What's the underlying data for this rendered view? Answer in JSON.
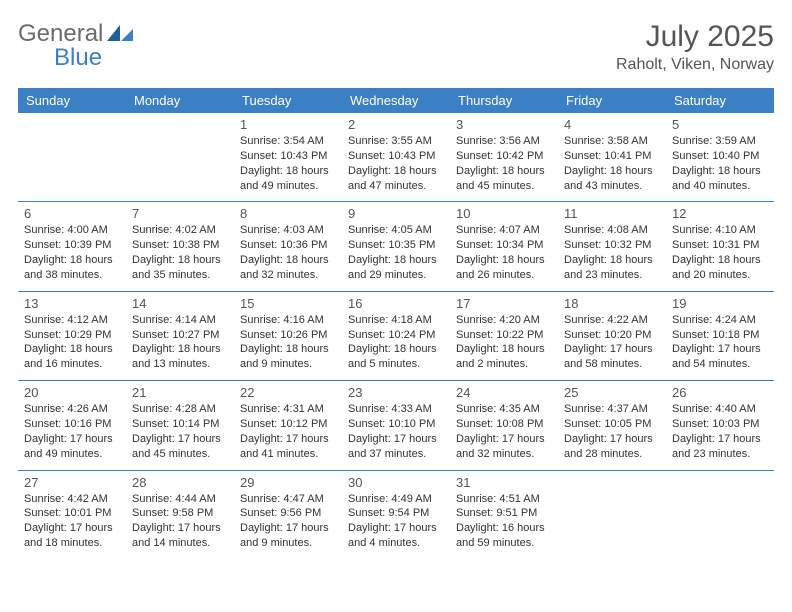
{
  "logo": {
    "text1": "General",
    "text2": "Blue"
  },
  "title": "July 2025",
  "location": "Raholt, Viken, Norway",
  "colors": {
    "header_bg": "#3b7fc4",
    "header_fg": "#ffffff",
    "border": "#3b7fc4",
    "text": "#333333",
    "muted": "#555555"
  },
  "font": {
    "family": "Arial",
    "title_size": 30,
    "location_size": 16,
    "th_size": 13,
    "daynum_size": 13,
    "info_size": 11
  },
  "weekdays": [
    "Sunday",
    "Monday",
    "Tuesday",
    "Wednesday",
    "Thursday",
    "Friday",
    "Saturday"
  ],
  "weeks": [
    [
      null,
      null,
      {
        "n": "1",
        "sr": "3:54 AM",
        "ss": "10:43 PM",
        "dl": "18 hours and 49 minutes."
      },
      {
        "n": "2",
        "sr": "3:55 AM",
        "ss": "10:43 PM",
        "dl": "18 hours and 47 minutes."
      },
      {
        "n": "3",
        "sr": "3:56 AM",
        "ss": "10:42 PM",
        "dl": "18 hours and 45 minutes."
      },
      {
        "n": "4",
        "sr": "3:58 AM",
        "ss": "10:41 PM",
        "dl": "18 hours and 43 minutes."
      },
      {
        "n": "5",
        "sr": "3:59 AM",
        "ss": "10:40 PM",
        "dl": "18 hours and 40 minutes."
      }
    ],
    [
      {
        "n": "6",
        "sr": "4:00 AM",
        "ss": "10:39 PM",
        "dl": "18 hours and 38 minutes."
      },
      {
        "n": "7",
        "sr": "4:02 AM",
        "ss": "10:38 PM",
        "dl": "18 hours and 35 minutes."
      },
      {
        "n": "8",
        "sr": "4:03 AM",
        "ss": "10:36 PM",
        "dl": "18 hours and 32 minutes."
      },
      {
        "n": "9",
        "sr": "4:05 AM",
        "ss": "10:35 PM",
        "dl": "18 hours and 29 minutes."
      },
      {
        "n": "10",
        "sr": "4:07 AM",
        "ss": "10:34 PM",
        "dl": "18 hours and 26 minutes."
      },
      {
        "n": "11",
        "sr": "4:08 AM",
        "ss": "10:32 PM",
        "dl": "18 hours and 23 minutes."
      },
      {
        "n": "12",
        "sr": "4:10 AM",
        "ss": "10:31 PM",
        "dl": "18 hours and 20 minutes."
      }
    ],
    [
      {
        "n": "13",
        "sr": "4:12 AM",
        "ss": "10:29 PM",
        "dl": "18 hours and 16 minutes."
      },
      {
        "n": "14",
        "sr": "4:14 AM",
        "ss": "10:27 PM",
        "dl": "18 hours and 13 minutes."
      },
      {
        "n": "15",
        "sr": "4:16 AM",
        "ss": "10:26 PM",
        "dl": "18 hours and 9 minutes."
      },
      {
        "n": "16",
        "sr": "4:18 AM",
        "ss": "10:24 PM",
        "dl": "18 hours and 5 minutes."
      },
      {
        "n": "17",
        "sr": "4:20 AM",
        "ss": "10:22 PM",
        "dl": "18 hours and 2 minutes."
      },
      {
        "n": "18",
        "sr": "4:22 AM",
        "ss": "10:20 PM",
        "dl": "17 hours and 58 minutes."
      },
      {
        "n": "19",
        "sr": "4:24 AM",
        "ss": "10:18 PM",
        "dl": "17 hours and 54 minutes."
      }
    ],
    [
      {
        "n": "20",
        "sr": "4:26 AM",
        "ss": "10:16 PM",
        "dl": "17 hours and 49 minutes."
      },
      {
        "n": "21",
        "sr": "4:28 AM",
        "ss": "10:14 PM",
        "dl": "17 hours and 45 minutes."
      },
      {
        "n": "22",
        "sr": "4:31 AM",
        "ss": "10:12 PM",
        "dl": "17 hours and 41 minutes."
      },
      {
        "n": "23",
        "sr": "4:33 AM",
        "ss": "10:10 PM",
        "dl": "17 hours and 37 minutes."
      },
      {
        "n": "24",
        "sr": "4:35 AM",
        "ss": "10:08 PM",
        "dl": "17 hours and 32 minutes."
      },
      {
        "n": "25",
        "sr": "4:37 AM",
        "ss": "10:05 PM",
        "dl": "17 hours and 28 minutes."
      },
      {
        "n": "26",
        "sr": "4:40 AM",
        "ss": "10:03 PM",
        "dl": "17 hours and 23 minutes."
      }
    ],
    [
      {
        "n": "27",
        "sr": "4:42 AM",
        "ss": "10:01 PM",
        "dl": "17 hours and 18 minutes."
      },
      {
        "n": "28",
        "sr": "4:44 AM",
        "ss": "9:58 PM",
        "dl": "17 hours and 14 minutes."
      },
      {
        "n": "29",
        "sr": "4:47 AM",
        "ss": "9:56 PM",
        "dl": "17 hours and 9 minutes."
      },
      {
        "n": "30",
        "sr": "4:49 AM",
        "ss": "9:54 PM",
        "dl": "17 hours and 4 minutes."
      },
      {
        "n": "31",
        "sr": "4:51 AM",
        "ss": "9:51 PM",
        "dl": "16 hours and 59 minutes."
      },
      null,
      null
    ]
  ],
  "labels": {
    "sunrise": "Sunrise:",
    "sunset": "Sunset:",
    "daylight": "Daylight:"
  }
}
